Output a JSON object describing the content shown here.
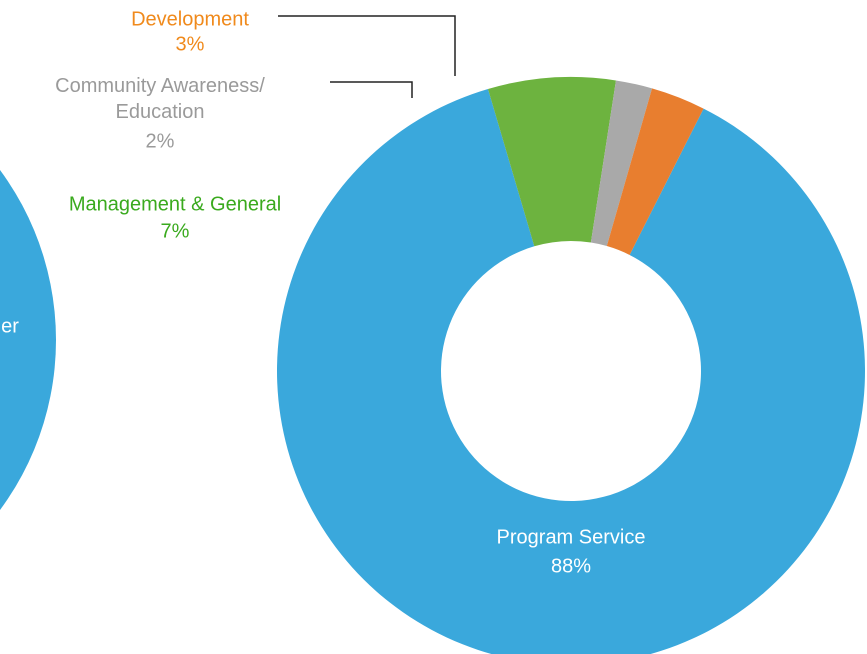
{
  "chart_data": [
    {
      "type": "donut",
      "categories": [
        "Program Service",
        "Management & General",
        "Community Awareness/\nEducation",
        "Development"
      ],
      "values": [
        88,
        7,
        2,
        3
      ],
      "value_labels": [
        "88%",
        "7%",
        "2%",
        "3%"
      ],
      "colors": [
        "#3aa8dc",
        "#6db33f",
        "#a9a9a9",
        "#e87e2f"
      ],
      "label_colors": [
        "#ffffff",
        "#3aaa1e",
        "#9a9a9a",
        "#f08a1c"
      ]
    },
    {
      "type": "pie",
      "categories": [
        "er"
      ],
      "colors": [
        "#3aa8dc"
      ],
      "label_colors": [
        "#ffffff"
      ]
    }
  ]
}
